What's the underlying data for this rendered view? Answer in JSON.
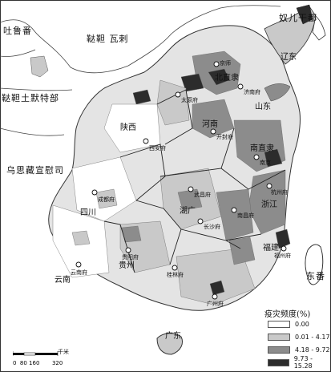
{
  "legend": {
    "title": "疫灾频度(%)",
    "items": [
      {
        "label": "0.00",
        "color": "#ffffff"
      },
      {
        "label": "0.01 - 4.17",
        "color": "#c9c9c9"
      },
      {
        "label": "4.18 - 9.72",
        "color": "#8c8c8c"
      },
      {
        "label": "9.73 - 15.28",
        "color": "#2c2c2c"
      }
    ]
  },
  "regions": {
    "nuerganbu": "奴儿干都",
    "tulufan": "吐鲁番",
    "dadan": "鞑靼 瓦剌",
    "tuerhute": "鞑靼土默特部",
    "wusizang": "乌思藏宣慰司",
    "shanxi": "陕西",
    "sichuan": "四川",
    "yunnan": "云南",
    "guizhou": "贵州",
    "huguang": "湖广",
    "henan": "河南",
    "shandong": "山东",
    "nanzhili": "南直隶",
    "zhejiang": "浙江",
    "fujian": "福建",
    "guangdong": "广东",
    "dongfan": "东番",
    "beizhili": "北直隶",
    "liaodong": "辽东"
  },
  "cities": {
    "xian": "西安府",
    "chengdu": "成都府",
    "wuchang": "武昌府",
    "nanjing": "南京",
    "yunnanfu": "云南府",
    "guiyang": "贵阳府",
    "guilin": "桂林府",
    "guangzhou": "广州府",
    "fuzhou": "福州府",
    "hangzhou": "杭州府",
    "jinan": "济南府",
    "taiyuan": "太原府",
    "kaifeng": "开封府",
    "nanchang": "南昌府",
    "changsha": "长沙府",
    "beijing": "京师"
  },
  "scale": {
    "unit": "千米",
    "ticks": "0  80 160       320"
  }
}
